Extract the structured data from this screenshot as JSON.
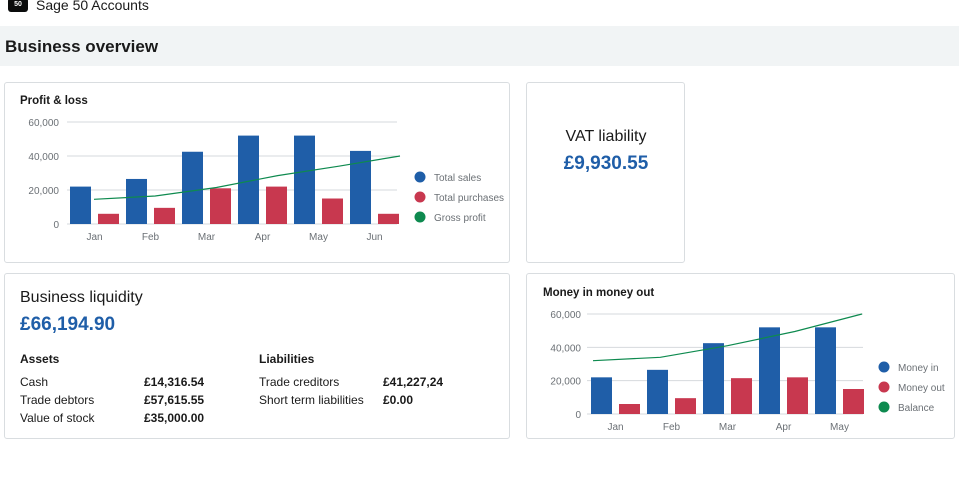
{
  "app": {
    "logo_text": "50",
    "title": "Sage 50 Accounts"
  },
  "page": {
    "title": "Business overview"
  },
  "profit_loss": {
    "title": "Profit & loss",
    "legend": [
      "Total sales",
      "Total purchases",
      "Gross profit"
    ]
  },
  "vat": {
    "title": "VAT liability",
    "value": "£9,930.55"
  },
  "liquidity": {
    "title": "Business liquidity",
    "value": "£66,194.90",
    "assets_title": "Assets",
    "assets": [
      {
        "label": "Cash",
        "value": "£14,316.54"
      },
      {
        "label": "Trade debtors",
        "value": "£57,615.55"
      },
      {
        "label": "Value of stock",
        "value": "£35,000.00"
      }
    ],
    "liabilities_title": "Liabilities",
    "liabilities": [
      {
        "label": "Trade creditors",
        "value": "£41,227,24"
      },
      {
        "label": "Short term liabilities",
        "value": "£0.00"
      }
    ]
  },
  "money": {
    "title": "Money in money out",
    "legend": [
      "Money in",
      "Money out",
      "Balance"
    ]
  },
  "colors": {
    "blue": "#1f5ea8",
    "red": "#c8384f",
    "green": "#0e8a4f",
    "accent": "#1f5ea8"
  },
  "chart_data": [
    {
      "type": "bar",
      "title": "Profit & loss",
      "categories": [
        "Jan",
        "Feb",
        "Mar",
        "Apr",
        "May",
        "Jun"
      ],
      "yticks": [
        "0",
        "20,000",
        "40,000",
        "60,000"
      ],
      "ylim": [
        0,
        60000
      ],
      "grid": true,
      "legend_position": "right",
      "series": [
        {
          "name": "Total sales",
          "kind": "bar",
          "color": "#1f5ea8",
          "values": [
            22000,
            26500,
            42500,
            52000,
            52000,
            43000
          ]
        },
        {
          "name": "Total purchases",
          "kind": "bar",
          "color": "#c8384f",
          "values": [
            6000,
            9500,
            21000,
            22000,
            15000,
            6000
          ]
        },
        {
          "name": "Gross profit",
          "kind": "line",
          "color": "#0e8a4f",
          "values": [
            14500,
            16500,
            21500,
            28500,
            34000,
            40000
          ]
        }
      ]
    },
    {
      "type": "bar",
      "title": "Money in money out",
      "categories": [
        "Jan",
        "Feb",
        "Mar",
        "Apr",
        "May"
      ],
      "yticks": [
        "0",
        "20,000",
        "40,000",
        "60,000"
      ],
      "ylim": [
        0,
        60000
      ],
      "grid": true,
      "legend_position": "right",
      "series": [
        {
          "name": "Money in",
          "kind": "bar",
          "color": "#1f5ea8",
          "values": [
            22000,
            26500,
            42500,
            52000,
            52000
          ]
        },
        {
          "name": "Money out",
          "kind": "bar",
          "color": "#c8384f",
          "values": [
            6000,
            9500,
            21500,
            22000,
            15000
          ]
        },
        {
          "name": "Balance",
          "kind": "line",
          "color": "#0e8a4f",
          "values": [
            32000,
            34000,
            41000,
            49500,
            60000
          ]
        }
      ]
    }
  ]
}
